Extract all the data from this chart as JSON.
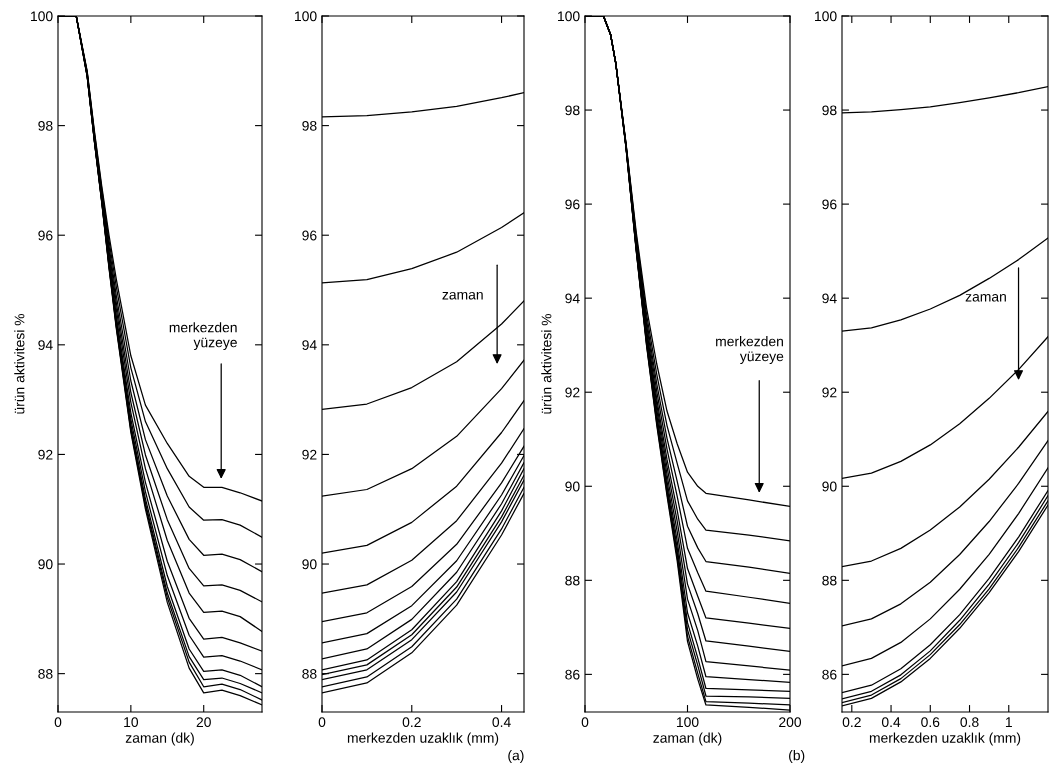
{
  "chart_data": [
    {
      "type": "line",
      "xlabel": "zaman (dk)",
      "ylabel": "ürün aktivitesi %",
      "xlim": [
        0,
        28
      ],
      "ylim": [
        87.3,
        100
      ],
      "xticks": [
        0,
        10,
        20
      ],
      "yticks": [
        88,
        90,
        92,
        94,
        96,
        98,
        100
      ],
      "x": [
        0,
        2.5,
        4,
        5,
        6,
        7,
        8,
        10,
        12,
        15,
        18,
        20,
        22.5,
        25,
        28
      ],
      "annotations": [
        "merkezden\nyüzeye"
      ],
      "series": [
        {
          "color": "#000000",
          "values": [
            100,
            100,
            99.0,
            97.9,
            96.9,
            96.0,
            95.2,
            93.8,
            92.9,
            92.2,
            91.6,
            91.4,
            91.4,
            91.3,
            91.15
          ]
        },
        {
          "color": "#000000",
          "values": [
            100,
            100,
            98.98,
            97.87,
            96.85,
            95.9,
            95.06,
            93.58,
            92.6,
            91.74,
            91.04,
            90.8,
            90.81,
            90.71,
            90.49
          ]
        },
        {
          "color": "#000000",
          "values": [
            100,
            100,
            98.97,
            97.83,
            96.8,
            95.8,
            94.9,
            93.34,
            92.27,
            91.24,
            90.45,
            90.16,
            90.18,
            90.08,
            89.86
          ]
        },
        {
          "color": "#000000",
          "values": [
            100,
            100,
            98.95,
            97.8,
            96.76,
            95.71,
            94.77,
            93.13,
            91.99,
            90.81,
            89.92,
            89.6,
            89.62,
            89.52,
            89.31
          ]
        },
        {
          "color": "#000000",
          "values": [
            100,
            100,
            98.94,
            97.78,
            96.72,
            95.63,
            94.65,
            92.95,
            91.74,
            90.43,
            89.47,
            89.12,
            89.14,
            89.04,
            88.77
          ]
        },
        {
          "color": "#000000",
          "values": [
            100,
            100,
            98.93,
            97.75,
            96.68,
            95.56,
            94.53,
            92.76,
            91.49,
            90.05,
            89.01,
            88.63,
            88.66,
            88.56,
            88.41
          ]
        },
        {
          "color": "#000000",
          "values": [
            100,
            100,
            98.92,
            97.73,
            96.65,
            95.5,
            94.45,
            92.64,
            91.32,
            89.79,
            88.7,
            88.3,
            88.33,
            88.23,
            88.07
          ]
        },
        {
          "color": "#000000",
          "values": [
            100,
            100,
            98.91,
            97.72,
            96.63,
            95.46,
            94.39,
            92.54,
            91.19,
            89.59,
            88.45,
            88.04,
            88.07,
            87.97,
            87.76
          ]
        },
        {
          "color": "#000000",
          "values": [
            100,
            100,
            98.91,
            97.71,
            96.62,
            95.44,
            94.35,
            92.48,
            91.11,
            89.47,
            88.31,
            87.89,
            87.92,
            87.82,
            87.65
          ]
        },
        {
          "color": "#000000",
          "values": [
            100,
            100,
            98.9,
            97.71,
            96.61,
            95.42,
            94.33,
            92.44,
            91.06,
            89.39,
            88.21,
            87.76,
            87.81,
            87.71,
            87.52
          ]
        },
        {
          "color": "#000000",
          "values": [
            100,
            100,
            98.9,
            97.7,
            96.6,
            95.4,
            94.3,
            92.4,
            91.0,
            89.3,
            88.1,
            87.65,
            87.7,
            87.6,
            87.43
          ]
        }
      ]
    },
    {
      "type": "line",
      "xlabel": "merkezden uzaklık (mm)",
      "xlim": [
        0,
        0.45
      ],
      "ylim": [
        87.3,
        100
      ],
      "xticks": [
        0,
        0.2,
        0.4
      ],
      "yticks": [
        88,
        90,
        92,
        94,
        96,
        98,
        100
      ],
      "x": [
        0,
        0.1,
        0.2,
        0.3,
        0.4,
        0.45
      ],
      "annotations": [
        "zaman",
        "(a)"
      ],
      "series": [
        {
          "color": "#000000",
          "values": [
            98.16,
            98.18,
            98.25,
            98.35,
            98.51,
            98.6
          ]
        },
        {
          "color": "#000000",
          "values": [
            95.13,
            95.19,
            95.39,
            95.69,
            96.14,
            96.41
          ]
        },
        {
          "color": "#000000",
          "values": [
            92.82,
            92.92,
            93.22,
            93.69,
            94.38,
            94.8
          ]
        },
        {
          "color": "#000000",
          "values": [
            91.24,
            91.36,
            91.74,
            92.33,
            93.2,
            93.72
          ]
        },
        {
          "color": "#000000",
          "values": [
            90.2,
            90.34,
            90.76,
            91.42,
            92.4,
            92.98
          ]
        },
        {
          "color": "#000000",
          "values": [
            89.47,
            89.62,
            90.07,
            90.79,
            91.84,
            92.47
          ]
        },
        {
          "color": "#000000",
          "values": [
            88.95,
            89.11,
            89.59,
            90.36,
            91.48,
            92.15
          ]
        },
        {
          "color": "#000000",
          "values": [
            88.56,
            88.73,
            89.24,
            90.06,
            91.26,
            91.98
          ]
        },
        {
          "color": "#000000",
          "values": [
            88.27,
            88.45,
            88.99,
            89.85,
            91.1,
            91.85
          ]
        },
        {
          "color": "#000000",
          "values": [
            88.07,
            88.25,
            88.8,
            89.68,
            90.97,
            91.74
          ]
        },
        {
          "color": "#000000",
          "values": [
            87.98,
            88.16,
            88.71,
            89.58,
            90.86,
            91.62
          ]
        },
        {
          "color": "#000000",
          "values": [
            87.89,
            88.07,
            88.62,
            89.49,
            90.77,
            91.53
          ]
        },
        {
          "color": "#000000",
          "values": [
            87.76,
            87.94,
            88.49,
            89.36,
            90.64,
            91.4
          ]
        },
        {
          "color": "#000000",
          "values": [
            87.65,
            87.83,
            88.38,
            89.25,
            90.53,
            91.29
          ]
        }
      ]
    },
    {
      "type": "line",
      "xlabel": "zaman (dk)",
      "ylabel": "ürün aktivitesi %",
      "xlim": [
        0,
        200
      ],
      "ylim": [
        85.2,
        100
      ],
      "xticks": [
        0,
        100,
        200
      ],
      "yticks": [
        86,
        88,
        90,
        92,
        94,
        96,
        98,
        100
      ],
      "x": [
        0,
        18,
        25,
        30,
        40,
        50,
        60,
        70,
        80,
        90,
        100,
        110,
        118,
        160,
        200
      ],
      "annotations": [
        "merkezden\nyüzeye"
      ],
      "series": [
        {
          "color": "#000000",
          "values": [
            100,
            100,
            99.6,
            99.0,
            97.3,
            95.4,
            93.8,
            92.6,
            91.6,
            90.9,
            90.3,
            90.0,
            89.85,
            89.71,
            89.57
          ]
        },
        {
          "color": "#000000",
          "values": [
            100,
            100,
            99.6,
            99.0,
            97.28,
            95.33,
            93.66,
            92.38,
            91.29,
            90.48,
            89.69,
            89.3,
            89.07,
            88.96,
            88.84
          ]
        },
        {
          "color": "#000000",
          "values": [
            100,
            100,
            99.6,
            99.0,
            97.27,
            95.27,
            93.54,
            92.18,
            91.02,
            90.1,
            89.15,
            88.69,
            88.4,
            88.28,
            88.15
          ]
        },
        {
          "color": "#000000",
          "values": [
            100,
            100,
            99.6,
            99.0,
            97.26,
            95.22,
            93.44,
            92.02,
            90.79,
            89.78,
            88.68,
            88.16,
            87.77,
            87.64,
            87.51
          ]
        },
        {
          "color": "#000000",
          "values": [
            100,
            100,
            99.6,
            99.0,
            97.24,
            95.17,
            93.34,
            91.86,
            90.57,
            89.48,
            88.25,
            87.66,
            87.2,
            87.09,
            86.98
          ]
        },
        {
          "color": "#000000",
          "values": [
            100,
            100,
            99.6,
            99.0,
            97.23,
            95.14,
            93.27,
            91.74,
            90.41,
            89.25,
            87.92,
            87.29,
            86.71,
            86.6,
            86.49
          ]
        },
        {
          "color": "#000000",
          "values": [
            100,
            100,
            99.6,
            99.0,
            97.23,
            95.1,
            93.2,
            91.63,
            90.25,
            89.03,
            87.6,
            86.93,
            86.27,
            86.18,
            86.09
          ]
        },
        {
          "color": "#000000",
          "values": [
            100,
            100,
            99.6,
            99.0,
            97.22,
            95.07,
            93.14,
            91.52,
            90.11,
            88.83,
            87.31,
            86.6,
            85.95,
            85.89,
            85.83
          ]
        },
        {
          "color": "#000000",
          "values": [
            100,
            100,
            99.6,
            99.0,
            97.21,
            95.04,
            93.09,
            91.44,
            90.0,
            88.68,
            87.1,
            86.35,
            85.7,
            85.67,
            85.64
          ]
        },
        {
          "color": "#000000",
          "values": [
            100,
            100,
            99.6,
            99.0,
            97.21,
            95.03,
            93.06,
            91.39,
            89.93,
            88.58,
            86.95,
            86.19,
            85.54,
            85.52,
            85.49
          ]
        },
        {
          "color": "#000000",
          "values": [
            100,
            100,
            99.6,
            99.0,
            97.2,
            95.01,
            93.02,
            91.34,
            89.85,
            88.48,
            86.81,
            86.02,
            85.42,
            85.39,
            85.35
          ]
        },
        {
          "color": "#000000",
          "values": [
            100,
            100,
            99.6,
            99.0,
            97.2,
            95.0,
            93.0,
            91.3,
            89.8,
            88.4,
            86.7,
            85.9,
            85.35,
            85.3,
            85.24
          ]
        }
      ]
    },
    {
      "type": "line",
      "xlabel": "merkezden uzaklık (mm)",
      "xlim": [
        0.15,
        1.2
      ],
      "ylim": [
        85.2,
        100
      ],
      "xticks": [
        0.2,
        0.4,
        0.6,
        0.8,
        1
      ],
      "yticks": [
        86,
        88,
        90,
        92,
        94,
        96,
        98,
        100
      ],
      "x": [
        0.15,
        0.3,
        0.45,
        0.6,
        0.75,
        0.9,
        1.05,
        1.2
      ],
      "annotations": [
        "zaman",
        "(b)"
      ],
      "series": [
        {
          "color": "#000000",
          "values": [
            97.94,
            97.96,
            98.01,
            98.07,
            98.16,
            98.26,
            98.37,
            98.5
          ]
        },
        {
          "color": "#000000",
          "values": [
            93.3,
            93.37,
            93.54,
            93.77,
            94.06,
            94.42,
            94.82,
            95.28
          ]
        },
        {
          "color": "#000000",
          "values": [
            90.17,
            90.28,
            90.53,
            90.88,
            91.33,
            91.87,
            92.48,
            93.18
          ]
        },
        {
          "color": "#000000",
          "values": [
            88.29,
            88.41,
            88.68,
            89.07,
            89.56,
            90.15,
            90.83,
            91.59
          ]
        },
        {
          "color": "#000000",
          "values": [
            87.03,
            87.18,
            87.5,
            87.96,
            88.55,
            89.25,
            90.06,
            90.97
          ]
        },
        {
          "color": "#000000",
          "values": [
            86.18,
            86.34,
            86.68,
            87.18,
            87.81,
            88.55,
            89.42,
            90.39
          ]
        },
        {
          "color": "#000000",
          "values": [
            85.61,
            85.77,
            86.12,
            86.63,
            87.27,
            88.04,
            88.92,
            89.91
          ]
        },
        {
          "color": "#000000",
          "values": [
            85.48,
            85.64,
            85.99,
            86.5,
            87.15,
            87.92,
            88.8,
            89.8
          ]
        },
        {
          "color": "#000000",
          "values": [
            85.4,
            85.56,
            85.91,
            86.42,
            87.06,
            87.82,
            88.7,
            89.69
          ]
        },
        {
          "color": "#000000",
          "values": [
            85.33,
            85.49,
            85.84,
            86.34,
            86.98,
            87.74,
            88.61,
            89.6
          ]
        }
      ]
    }
  ]
}
